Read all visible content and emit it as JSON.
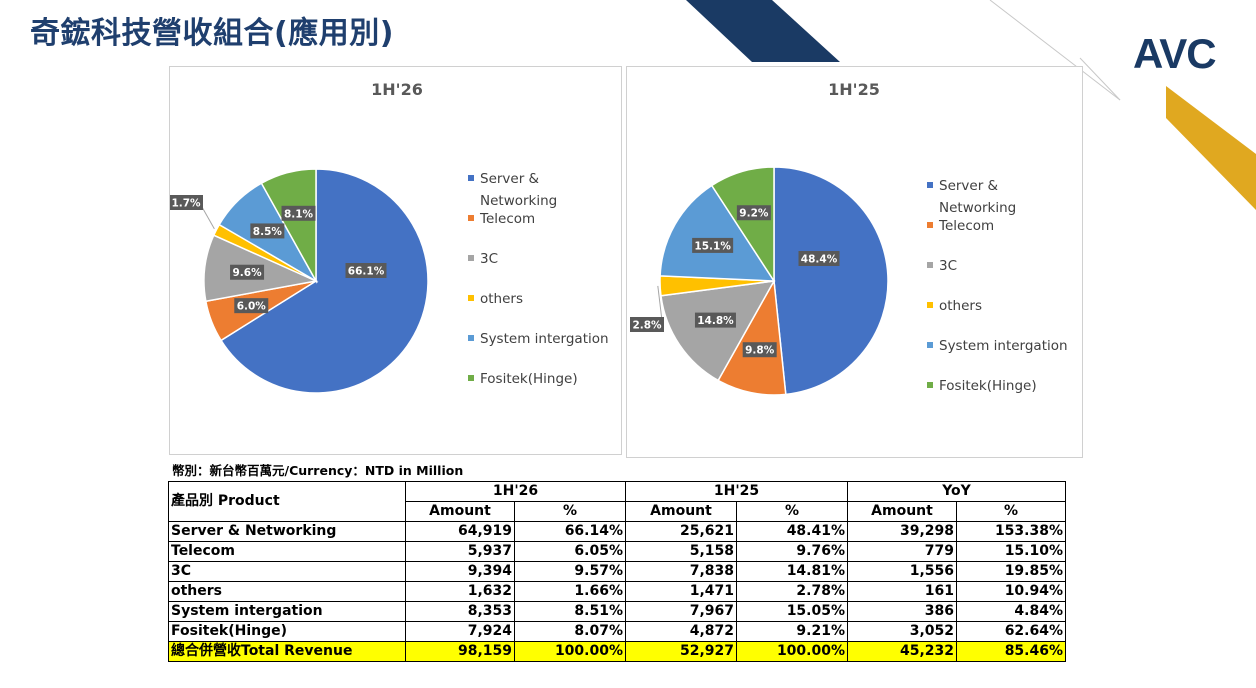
{
  "slide": {
    "title": "奇鋐科技營收組合(應用別)",
    "logo": "AVC",
    "unit_note": "幣別：新台幣百萬元/Currency：NTD  in Million"
  },
  "colors": {
    "server": "#4472c4",
    "telecom": "#ed7d31",
    "3c": "#a5a5a5",
    "others": "#ffc000",
    "system": "#5b9bd5",
    "fositek": "#70ad47",
    "navy_deco": "#1a3a64",
    "gold_deco": "#e0a820",
    "total_row": "#ffff00"
  },
  "chart_data": [
    {
      "type": "pie",
      "title": "1H'26",
      "legend_position": "right",
      "categories": [
        "Server & Networking",
        "Telecom",
        "3C",
        "others",
        "System intergation",
        "Fositek(Hinge)"
      ],
      "values": [
        66.1,
        6.0,
        9.6,
        1.7,
        8.5,
        8.1
      ],
      "labels": [
        "66.1%",
        "6.0%",
        "9.6%",
        "1.7%",
        "8.5%",
        "8.1%"
      ]
    },
    {
      "type": "pie",
      "title": "1H'25",
      "legend_position": "right",
      "categories": [
        "Server & Networking",
        "Telecom",
        "3C",
        "others",
        "System intergation",
        "Fositek(Hinge)"
      ],
      "values": [
        48.4,
        9.8,
        14.8,
        2.8,
        15.1,
        9.2
      ],
      "labels": [
        "48.4%",
        "9.8%",
        "14.8%",
        "2.8%",
        "15.1%",
        "9.2%"
      ]
    }
  ],
  "legend": {
    "items": [
      {
        "label": "Server & Networking",
        "line1": "Server &",
        "line2": "Networking",
        "color_key": "server"
      },
      {
        "label": "Telecom",
        "color_key": "telecom"
      },
      {
        "label": "3C",
        "color_key": "3c"
      },
      {
        "label": "others",
        "color_key": "others"
      },
      {
        "label": "System intergation",
        "color_key": "system"
      },
      {
        "label": "Fositek(Hinge)",
        "color_key": "fositek"
      }
    ]
  },
  "table": {
    "product_header": "產品別 Product",
    "period_headers": [
      "1H'26",
      "1H'25",
      "YoY"
    ],
    "sub_headers": [
      "Amount",
      "%",
      "Amount",
      "%",
      "Amount",
      "%"
    ],
    "rows": [
      {
        "product": "Server & Networking",
        "cells": [
          "64,919",
          "66.14%",
          "25,621",
          "48.41%",
          "39,298",
          "153.38%"
        ]
      },
      {
        "product": "Telecom",
        "cells": [
          "5,937",
          "6.05%",
          "5,158",
          "9.76%",
          "779",
          "15.10%"
        ]
      },
      {
        "product": "3C",
        "cells": [
          "9,394",
          "9.57%",
          "7,838",
          "14.81%",
          "1,556",
          "19.85%"
        ]
      },
      {
        "product": "others",
        "cells": [
          "1,632",
          "1.66%",
          "1,471",
          "2.78%",
          "161",
          "10.94%"
        ]
      },
      {
        "product": "System intergation",
        "cells": [
          "8,353",
          "8.51%",
          "7,967",
          "15.05%",
          "386",
          "4.84%"
        ]
      },
      {
        "product": "Fositek(Hinge)",
        "cells": [
          "7,924",
          "8.07%",
          "4,872",
          "9.21%",
          "3,052",
          "62.64%"
        ]
      }
    ],
    "total": {
      "product": "總合併營收Total Revenue",
      "cells": [
        "98,159",
        "100.00%",
        "52,927",
        "100.00%",
        "45,232",
        "85.46%"
      ]
    }
  }
}
